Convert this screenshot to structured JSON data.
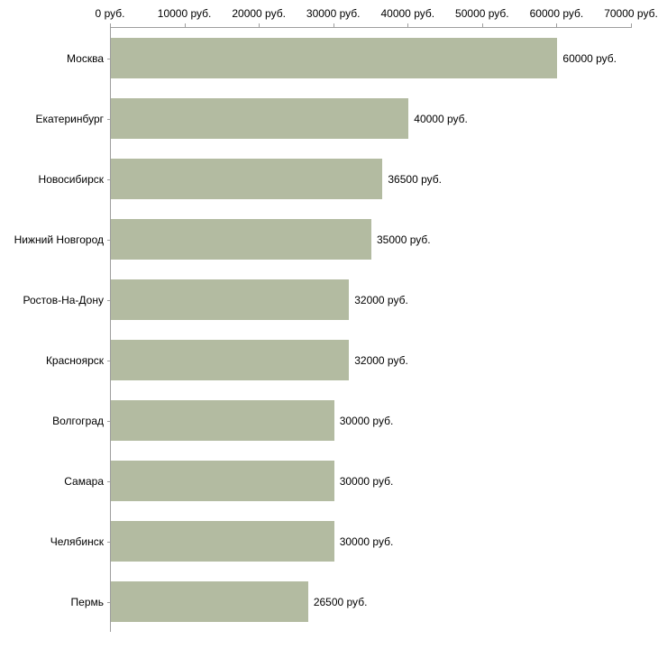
{
  "chart_data": {
    "type": "bar",
    "orientation": "horizontal",
    "categories": [
      "Москва",
      "Екатеринбург",
      "Новосибирск",
      "Нижний Новгород",
      "Ростов-На-Дону",
      "Красноярск",
      "Волгоград",
      "Самара",
      "Челябинск",
      "Пермь"
    ],
    "values": [
      60000,
      40000,
      36500,
      35000,
      32000,
      32000,
      30000,
      30000,
      30000,
      26500
    ],
    "value_labels": [
      "60000 руб.",
      "40000 руб.",
      "36500 руб.",
      "35000 руб.",
      "32000 руб.",
      "32000 руб.",
      "30000 руб.",
      "30000 руб.",
      "30000 руб.",
      "26500 руб."
    ],
    "x_ticks": [
      {
        "value": 0,
        "label": "0 руб."
      },
      {
        "value": 10000,
        "label": "10000 руб."
      },
      {
        "value": 20000,
        "label": "20000 руб."
      },
      {
        "value": 30000,
        "label": "30000 руб."
      },
      {
        "value": 40000,
        "label": "40000 руб."
      },
      {
        "value": 50000,
        "label": "50000 руб."
      },
      {
        "value": 60000,
        "label": "60000 руб."
      },
      {
        "value": 70000,
        "label": "70000 руб."
      }
    ],
    "xlim": [
      0,
      70000
    ],
    "bar_color": "#b3bba1",
    "axis_color": "#9e9e9e",
    "grid": false,
    "legend": false
  }
}
